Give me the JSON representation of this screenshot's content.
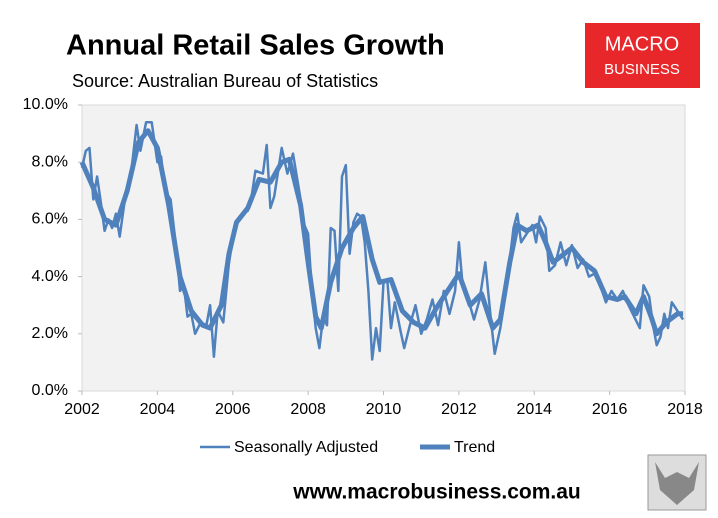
{
  "chart_data": {
    "type": "line",
    "title": "Annual Retail Sales Growth",
    "subtitle": "Source: Australian Bureau of Statistics",
    "xlim": [
      2002,
      2018
    ],
    "xticks": [
      2002,
      2004,
      2006,
      2008,
      2010,
      2012,
      2014,
      2016,
      2018
    ],
    "ylim": [
      0,
      10
    ],
    "yticks": [
      {
        "value": 0,
        "label": "0.0%"
      },
      {
        "value": 2,
        "label": "2.0%"
      },
      {
        "value": 4,
        "label": "4.0%"
      },
      {
        "value": 6,
        "label": "6.0%"
      },
      {
        "value": 8,
        "label": "8.0%"
      },
      {
        "value": 10,
        "label": "10.0%"
      }
    ],
    "grid": false,
    "legend": "bottom",
    "series": [
      {
        "name": "Seasonally Adjusted",
        "color": "#4f81bd",
        "width": 2.5,
        "x": [
          2002.0,
          2002.1,
          2002.2,
          2002.3,
          2002.4,
          2002.5,
          2002.6,
          2002.7,
          2002.8,
          2002.9,
          2003.0,
          2003.15,
          2003.3,
          2003.45,
          2003.55,
          2003.7,
          2003.85,
          2004.0,
          2004.1,
          2004.2,
          2004.35,
          2004.5,
          2004.6,
          2004.7,
          2004.8,
          2004.9,
          2005.0,
          2005.15,
          2005.3,
          2005.4,
          2005.5,
          2005.6,
          2005.75,
          2005.9,
          2006.0,
          2006.1,
          2006.25,
          2006.4,
          2006.5,
          2006.6,
          2006.8,
          2006.9,
          2007.0,
          2007.1,
          2007.3,
          2007.45,
          2007.6,
          2007.8,
          2007.9,
          2008.0,
          2008.1,
          2008.2,
          2008.3,
          2008.4,
          2008.5,
          2008.6,
          2008.7,
          2008.8,
          2008.9,
          2009.0,
          2009.1,
          2009.2,
          2009.3,
          2009.4,
          2009.5,
          2009.6,
          2009.7,
          2009.8,
          2009.9,
          2010.0,
          2010.1,
          2010.2,
          2010.3,
          2010.45,
          2010.55,
          2010.7,
          2010.85,
          2011.0,
          2011.15,
          2011.3,
          2011.45,
          2011.6,
          2011.75,
          2011.9,
          2012.0,
          2012.1,
          2012.25,
          2012.4,
          2012.55,
          2012.7,
          2012.85,
          2012.95,
          2013.1,
          2013.25,
          2013.35,
          2013.45,
          2013.55,
          2013.65,
          2013.8,
          2013.95,
          2014.05,
          2014.15,
          2014.3,
          2014.4,
          2014.55,
          2014.7,
          2014.85,
          2015.0,
          2015.15,
          2015.3,
          2015.45,
          2015.6,
          2015.75,
          2015.9,
          2016.05,
          2016.2,
          2016.35,
          2016.5,
          2016.65,
          2016.8,
          2016.9,
          2017.05,
          2017.15,
          2017.25,
          2017.35,
          2017.45,
          2017.55,
          2017.65,
          2017.75,
          2017.85,
          2017.95
        ],
        "values": [
          7.8,
          8.4,
          8.5,
          6.7,
          7.5,
          6.6,
          5.6,
          6.0,
          5.7,
          6.2,
          5.4,
          6.8,
          7.6,
          9.3,
          8.4,
          9.4,
          9.4,
          8.0,
          8.2,
          7.0,
          6.7,
          5.0,
          3.5,
          3.7,
          2.6,
          2.7,
          2.0,
          2.4,
          2.3,
          3.0,
          1.2,
          2.8,
          2.4,
          4.5,
          5.3,
          5.8,
          6.2,
          6.3,
          6.8,
          7.7,
          7.6,
          8.6,
          6.4,
          6.8,
          8.5,
          7.6,
          8.3,
          6.7,
          5.8,
          5.5,
          3.5,
          2.2,
          1.5,
          2.6,
          2.3,
          5.7,
          5.6,
          3.5,
          7.5,
          7.9,
          4.8,
          5.9,
          6.2,
          6.1,
          5.2,
          3.5,
          1.1,
          2.2,
          1.4,
          3.8,
          3.9,
          2.2,
          3.1,
          2.1,
          1.5,
          2.3,
          3.0,
          2.0,
          2.5,
          3.2,
          2.3,
          3.5,
          2.7,
          3.5,
          5.2,
          3.7,
          3.2,
          2.5,
          3.2,
          4.5,
          2.5,
          1.3,
          2.2,
          3.5,
          4.6,
          5.7,
          6.2,
          5.2,
          5.5,
          5.8,
          5.2,
          6.1,
          5.7,
          4.2,
          4.4,
          5.2,
          4.4,
          5.1,
          4.3,
          4.6,
          4.0,
          4.1,
          3.7,
          3.1,
          3.5,
          3.2,
          3.5,
          3.0,
          2.6,
          2.2,
          3.7,
          3.3,
          2.3,
          1.6,
          1.9,
          2.7,
          2.2,
          3.1,
          2.9,
          2.7,
          2.5
        ]
      },
      {
        "name": "Trend",
        "color": "#4f81bd",
        "width": 5,
        "x": [
          2002.0,
          2002.3,
          2002.6,
          2002.9,
          2003.2,
          2003.5,
          2003.75,
          2004.0,
          2004.3,
          2004.6,
          2004.9,
          2005.2,
          2005.4,
          2005.7,
          2005.9,
          2006.1,
          2006.4,
          2006.7,
          2007.0,
          2007.3,
          2007.5,
          2007.8,
          2008.0,
          2008.2,
          2008.35,
          2008.6,
          2008.9,
          2009.2,
          2009.45,
          2009.7,
          2009.9,
          2010.2,
          2010.5,
          2010.8,
          2011.1,
          2011.4,
          2011.7,
          2012.0,
          2012.3,
          2012.6,
          2012.9,
          2013.1,
          2013.35,
          2013.55,
          2013.8,
          2014.1,
          2014.3,
          2014.5,
          2014.8,
          2015.0,
          2015.3,
          2015.6,
          2015.9,
          2016.2,
          2016.4,
          2016.7,
          2016.9,
          2017.1,
          2017.25,
          2017.5,
          2017.8,
          2017.95
        ],
        "values": [
          8.0,
          7.1,
          6.0,
          5.8,
          7.0,
          8.7,
          9.1,
          8.5,
          6.5,
          4.0,
          2.8,
          2.3,
          2.2,
          3.0,
          4.8,
          5.9,
          6.4,
          7.4,
          7.3,
          8.0,
          8.1,
          6.5,
          4.5,
          2.6,
          2.2,
          3.8,
          5.0,
          5.7,
          6.1,
          4.6,
          3.8,
          3.9,
          2.8,
          2.4,
          2.2,
          2.9,
          3.5,
          4.1,
          3.0,
          3.4,
          2.2,
          2.5,
          4.5,
          5.8,
          5.6,
          5.8,
          5.2,
          4.5,
          4.8,
          5.0,
          4.5,
          4.2,
          3.3,
          3.2,
          3.3,
          2.7,
          3.3,
          2.6,
          2.0,
          2.4,
          2.7,
          2.7
        ]
      }
    ]
  },
  "logo": {
    "line1": "MACRO",
    "line2": "BUSINESS"
  },
  "footer": "www.macrobusiness.com.au"
}
